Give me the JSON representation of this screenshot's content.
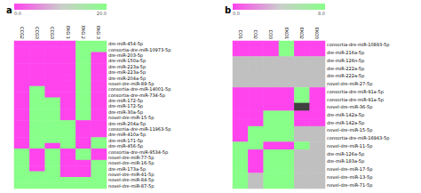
{
  "chart_data": [
    {
      "type": "heatmap",
      "title": "a",
      "x": [
        "CCG2",
        "CCG3",
        "CCG3",
        "EKG.1",
        "EKG.2",
        "EKG.3"
      ],
      "y": [
        "dre-miR-454-5p",
        "consortia-dre-miR-10973-5p",
        "dre-miR-203-5p",
        "dre-miR-150a-5p",
        "dre-miR-223a-5p",
        "dre-miR-223a-5p",
        "dre-miR-204a-5p",
        "novel-dre-miR-89-5p",
        "consortia-dre-miR-14001-5p",
        "consortia-dre-miR-734-5p",
        "dre-miR-172-5p",
        "dre-miR-172-5p",
        "dre-miR-30a-5p",
        "novel-dre-miR-15-5p",
        "dre-miR-204a-5p",
        "consortia-dre-miR-11963-5p",
        "dre-miR-410a-5p",
        "dre-miR-171-5p",
        "dre-miR-456-5p",
        "consortia-dre-miR-9534-5p",
        "novel-dre-miR-77-5p",
        "novel-dre-miR-16-5p",
        "dre-miR-173a-5p",
        "novel-dre-miR-41-5p",
        "novel-dre-miR-84-5p",
        "novel-dre-miR-87-5p"
      ],
      "values": [
        [
          0,
          0,
          0,
          0,
          1,
          1
        ],
        [
          0,
          0,
          0,
          0,
          1,
          1
        ],
        [
          0,
          0,
          0,
          0,
          1,
          0
        ],
        [
          0,
          0,
          0,
          0,
          1,
          0
        ],
        [
          0,
          0,
          0,
          0,
          1,
          0
        ],
        [
          0,
          0,
          0,
          0,
          1,
          0
        ],
        [
          0,
          0,
          0,
          0,
          1,
          0
        ],
        [
          0,
          0,
          0,
          0,
          1,
          0
        ],
        [
          0,
          1,
          0,
          0,
          1,
          0
        ],
        [
          0,
          1,
          0,
          0,
          1,
          0
        ],
        [
          0,
          1,
          1,
          0,
          1,
          0
        ],
        [
          0,
          1,
          1,
          0,
          1,
          0
        ],
        [
          0,
          1,
          1,
          0,
          1,
          0
        ],
        [
          0,
          1,
          1,
          0,
          1,
          0
        ],
        [
          0,
          1,
          1,
          1,
          0,
          0
        ],
        [
          0,
          1,
          1,
          1,
          0,
          0
        ],
        [
          0,
          1,
          1,
          1,
          0,
          0
        ],
        [
          0,
          1,
          1,
          1,
          0,
          1
        ],
        [
          0,
          1,
          0,
          1,
          0,
          1
        ],
        [
          1,
          0,
          1,
          0,
          1,
          0
        ],
        [
          1,
          0,
          1,
          0,
          1,
          0
        ],
        [
          1,
          0,
          1,
          0,
          0,
          1
        ],
        [
          1,
          0,
          1,
          0,
          0,
          1
        ],
        [
          1,
          1,
          1,
          0,
          0,
          1
        ],
        [
          1,
          1,
          1,
          1,
          1,
          1
        ],
        [
          1,
          1,
          1,
          1,
          1,
          1
        ]
      ],
      "colors": [
        "#ff44ee",
        "#88ff88"
      ],
      "colorbar": {
        "range": [
          0.0,
          20.0
        ],
        "ticks": [
          {
            "value": 0,
            "label": "0.0"
          },
          {
            "value": 20,
            "label": "20.0"
          }
        ],
        "colors": [
          "#ff44ee",
          "#cccccc",
          "#88ff88"
        ]
      },
      "grid": false
    },
    {
      "type": "heatmap",
      "title": "b",
      "x": [
        "CO1",
        "CO2",
        "CO3",
        "EKO1",
        "EKO2",
        "EKO3"
      ],
      "y": [
        "consortia-dre-miR-10893-5p",
        "dre-miR-216a-5p",
        "dre-miR-126n-5p",
        "dre-miR-222a-5p",
        "dre-miR-222a-5p",
        "novel-dre-miR-27-5p",
        "consortia-dre-miR-91a-5p",
        "consortia-dre-miR-91a-5p",
        "novel-dre-miR-36-5p",
        "dre-miR-142a-5p",
        "dre-miR-142a-5p",
        "novel-dre-miR-15-5p",
        "consortia-dre-miR-16943-5p",
        "novel-dre-miR-11-5p",
        "dre-miR-126a-5p",
        "dre-miR-183a-5p",
        "novel-dre-miR-17-5p",
        "novel-dre-miR-13-5p",
        "novel-dre-miR-71-5p"
      ],
      "values": [
        [
          0,
          0,
          0,
          1,
          0,
          0
        ],
        [
          0,
          0,
          0,
          1,
          0,
          0
        ],
        [
          2,
          2,
          2,
          2,
          2,
          2
        ],
        [
          2,
          2,
          2,
          2,
          2,
          2
        ],
        [
          2,
          2,
          2,
          2,
          2,
          2
        ],
        [
          2,
          2,
          2,
          2,
          2,
          2
        ],
        [
          0,
          0,
          0,
          0,
          1,
          0
        ],
        [
          0,
          0,
          0,
          0,
          1,
          0
        ],
        [
          0,
          0,
          0,
          0,
          3,
          0
        ],
        [
          0,
          0,
          1,
          1,
          0,
          0
        ],
        [
          0,
          0,
          1,
          1,
          0,
          0
        ],
        [
          0,
          1,
          1,
          1,
          2,
          2
        ],
        [
          0,
          1,
          1,
          1,
          2,
          2
        ],
        [
          1,
          1,
          0,
          0,
          1,
          2
        ],
        [
          1,
          0,
          1,
          1,
          2,
          2
        ],
        [
          1,
          0,
          1,
          1,
          2,
          2
        ],
        [
          1,
          0,
          1,
          1,
          2,
          2
        ],
        [
          1,
          2,
          1,
          1,
          2,
          2
        ],
        [
          1,
          2,
          1,
          1,
          2,
          2
        ]
      ],
      "colors": [
        "#ff44ee",
        "#88ff88",
        "#c0c0c0",
        "#404040"
      ],
      "colorbar": {
        "range": [
          0.0,
          8.0
        ],
        "ticks": [
          {
            "value": 0,
            "label": "0.0"
          },
          {
            "value": 8,
            "label": "8.0"
          }
        ],
        "colors": [
          "#ff44ee",
          "#cccccc",
          "#88ff88"
        ]
      },
      "grid": false
    }
  ]
}
